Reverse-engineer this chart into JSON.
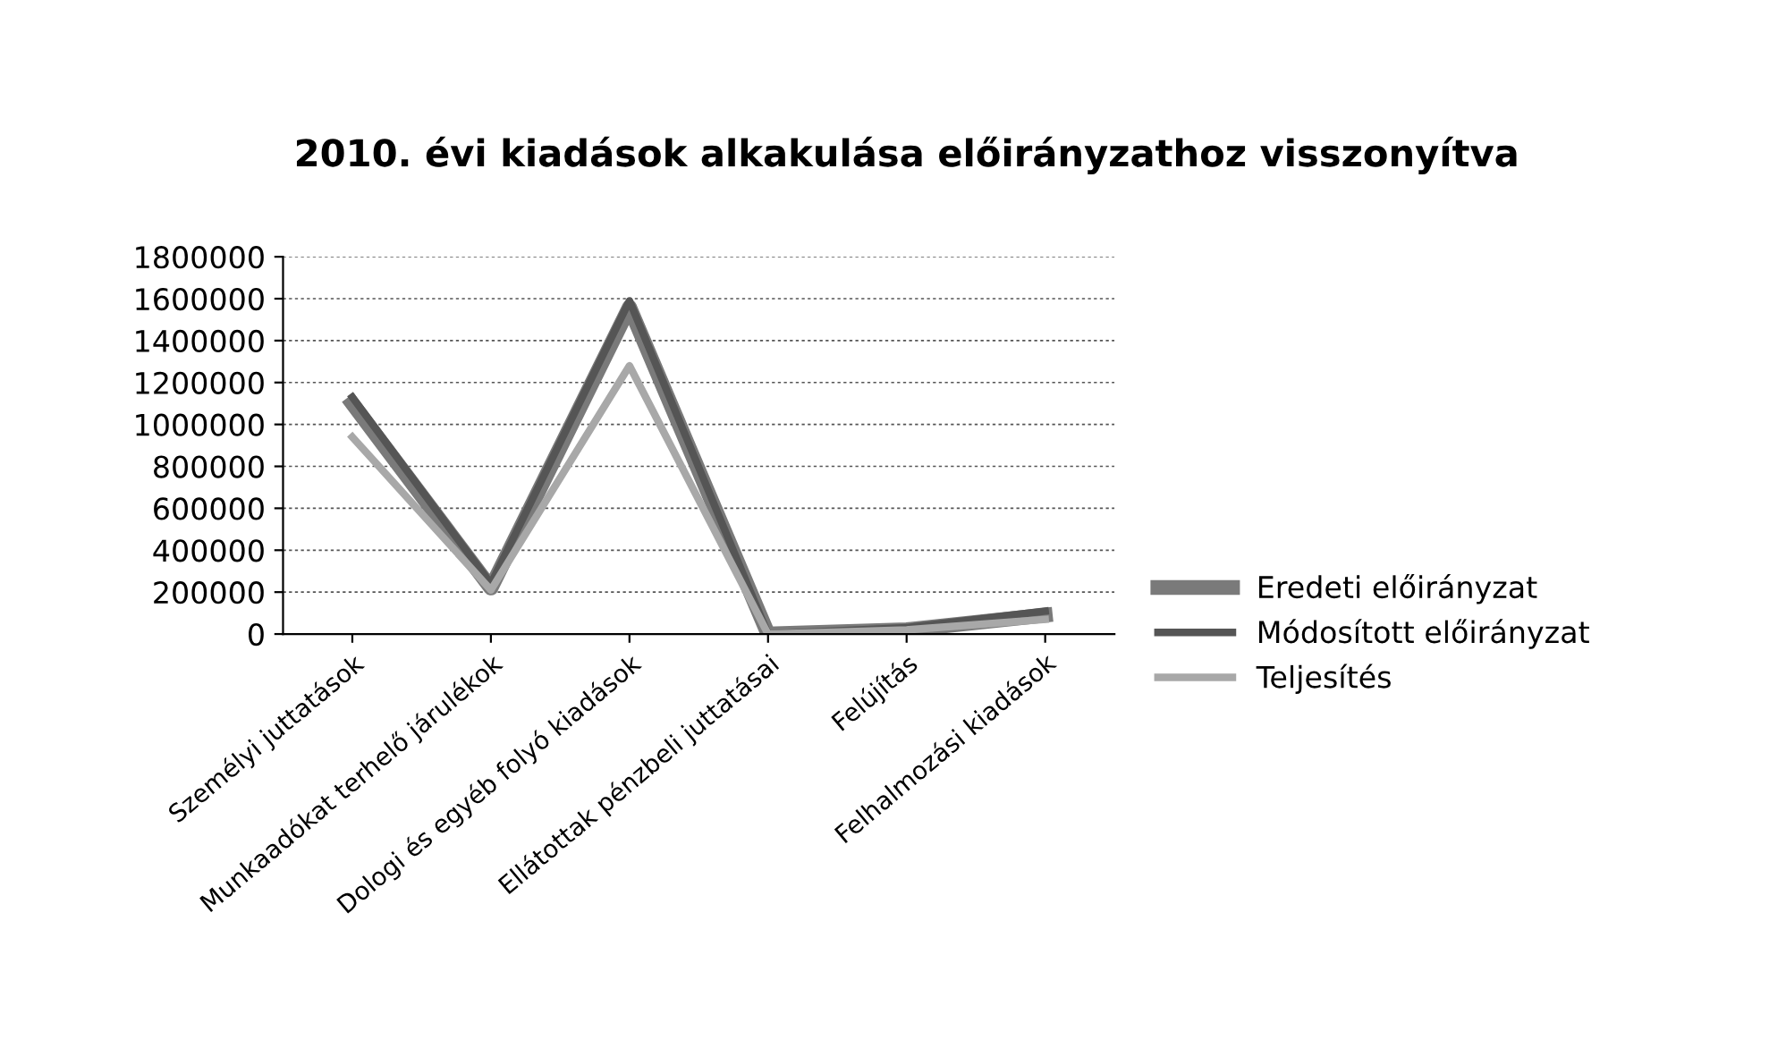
{
  "chart_data": {
    "type": "line",
    "title": "2010. évi kiadások alkakulása előirányzathoz visszonyítva",
    "categories": [
      "Személyi juttatások",
      "Munkaadókat terhelő járulékok",
      "Dologi és egyéb folyó kiadások",
      "Ellátottak pénzbeli juttatásai",
      "Felújítás",
      "Felhalmozási kiadások"
    ],
    "series": [
      {
        "name": "Eredeti előirányzat",
        "color": "#7a7a7a",
        "values": [
          1100000,
          220000,
          1560000,
          0,
          20000,
          90000
        ]
      },
      {
        "name": "Módosított előirányzat",
        "color": "#555555",
        "values": [
          1130000,
          240000,
          1590000,
          0,
          30000,
          110000
        ]
      },
      {
        "name": "Teljesítés",
        "color": "#a8a8a8",
        "values": [
          940000,
          210000,
          1280000,
          0,
          20000,
          70000
        ]
      }
    ],
    "ylim": [
      0,
      1800000
    ],
    "yticks": [
      0,
      200000,
      400000,
      600000,
      800000,
      1000000,
      1200000,
      1400000,
      1600000,
      1800000
    ],
    "grid": "y",
    "legend": "right",
    "marker": "none",
    "line_style": "solid"
  }
}
